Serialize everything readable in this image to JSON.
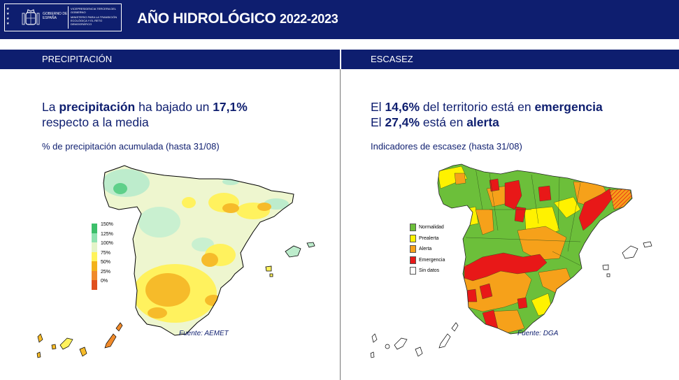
{
  "header": {
    "logo": {
      "org": "GOBIERNO DE ESPAÑA",
      "vice": "VICEPRESIDENCIA TERCERA DEL GOBIERNO",
      "ministry": "MINISTERIO PARA LA TRANSICIÓN ECOLÓGICA Y EL RETO DEMOGRÁFICO"
    },
    "title_main": "AÑO HIDROLÓGICO",
    "title_year": "2022-2023",
    "brand_color": "#0e1e6f"
  },
  "left": {
    "section_title": "PRECIPITACIÓN",
    "headline": {
      "l1a": "La ",
      "l1b": "precipitación",
      "l1c": " ha bajado un ",
      "l1d": "17,1%",
      "l2": "respecto a la media"
    },
    "subtitle": "% de precipitación acumulada (hasta 31/08)",
    "legend": [
      {
        "label": "150%",
        "color": "#3cbf6a"
      },
      {
        "label": "125%",
        "color": "#8fe3b0"
      },
      {
        "label": "100%",
        "color": "#e4f4c8"
      },
      {
        "label": "75%",
        "color": "#fff35a"
      },
      {
        "label": "50%",
        "color": "#f3b21a"
      },
      {
        "label": "25%",
        "color": "#f08a2a"
      },
      {
        "label": "0%",
        "color": "#e0501e"
      }
    ],
    "source": "Fuente: AEMET"
  },
  "right": {
    "section_title": "ESCASEZ",
    "headline": {
      "l1a": "El ",
      "l1b": "14,6%",
      "l1c": " del territorio está en ",
      "l1d": "emergencia",
      "l2a": "El ",
      "l2b": "27,4%",
      "l2c": " está en ",
      "l2d": "alerta"
    },
    "subtitle": "Indicadores de escasez (hasta 31/08)",
    "legend": [
      {
        "label": "Normalidad",
        "color": "#6cbf3a"
      },
      {
        "label": "Prealerta",
        "color": "#fff200"
      },
      {
        "label": "Alerta",
        "color": "#f6a11a"
      },
      {
        "label": "Emergencia",
        "color": "#e81818"
      },
      {
        "label": "Sin datos",
        "color": "#ffffff"
      }
    ],
    "source": "Fuente: DGA"
  }
}
